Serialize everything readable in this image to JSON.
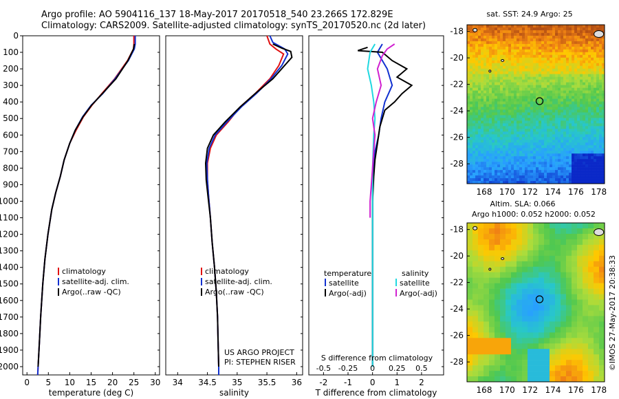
{
  "header": {
    "line1": "Argo profile: AO 5904116_137 18-May-2017 20170518_540 23.266S 172.829E",
    "line2": "Climatology: CARS2009. Satellite-adjusted climatology: synTS_20170520.nc (2d later)"
  },
  "colors": {
    "climatology": "#e01010",
    "satellite": "#1030d0",
    "argo": "#000000",
    "sat_s": "#20d8e0",
    "argo_s": "#d020d0"
  },
  "chart_data": [
    {
      "type": "line",
      "id": "temperature",
      "xlabel": "temperature (deg C)",
      "xlim": [
        -1,
        31
      ],
      "xticks": [
        0,
        5,
        10,
        15,
        20,
        25,
        30
      ],
      "ylim": [
        0,
        2050
      ],
      "yticks": [
        0,
        100,
        200,
        300,
        400,
        500,
        600,
        700,
        800,
        900,
        1000,
        1100,
        1200,
        1300,
        1400,
        1500,
        1600,
        1700,
        1800,
        1900,
        2000
      ],
      "legend": [
        "climatology",
        "satellite-adj. clim.",
        "Argo(..raw -QC)"
      ],
      "series": [
        {
          "name": "climatology",
          "color_key": "climatology",
          "points": [
            [
              25.0,
              0
            ],
            [
              25.0,
              50
            ],
            [
              24.9,
              80
            ],
            [
              23.5,
              150
            ],
            [
              20.5,
              260
            ],
            [
              17.5,
              350
            ],
            [
              15.2,
              420
            ],
            [
              13.2,
              490
            ],
            [
              11.5,
              570
            ],
            [
              10.0,
              650
            ],
            [
              8.7,
              750
            ],
            [
              7.8,
              850
            ],
            [
              6.7,
              950
            ],
            [
              5.8,
              1050
            ],
            [
              4.9,
              1200
            ],
            [
              4.2,
              1350
            ],
            [
              3.7,
              1500
            ],
            [
              3.2,
              1700
            ],
            [
              2.9,
              1850
            ],
            [
              2.6,
              2000
            ],
            [
              2.5,
              2050
            ]
          ]
        },
        {
          "name": "satellite-adj. clim.",
          "color_key": "satellite",
          "points": [
            [
              25.3,
              0
            ],
            [
              25.3,
              50
            ],
            [
              25.1,
              80
            ],
            [
              23.7,
              150
            ],
            [
              20.6,
              260
            ],
            [
              17.7,
              350
            ],
            [
              15.0,
              420
            ],
            [
              13.0,
              490
            ],
            [
              11.3,
              570
            ],
            [
              10.0,
              650
            ],
            [
              8.7,
              750
            ],
            [
              7.8,
              850
            ],
            [
              6.7,
              950
            ],
            [
              5.8,
              1050
            ],
            [
              4.9,
              1200
            ],
            [
              4.2,
              1350
            ],
            [
              3.7,
              1500
            ],
            [
              3.2,
              1700
            ],
            [
              2.9,
              1850
            ],
            [
              2.6,
              2000
            ],
            [
              2.5,
              2050
            ]
          ]
        },
        {
          "name": "Argo(..raw -QC)",
          "color_key": "argo",
          "points": [
            [
              25.1,
              50
            ],
            [
              24.9,
              80
            ],
            [
              23.6,
              150
            ],
            [
              20.8,
              260
            ],
            [
              17.6,
              350
            ],
            [
              15.1,
              420
            ],
            [
              13.1,
              490
            ],
            [
              11.3,
              570
            ],
            [
              10.0,
              650
            ],
            [
              8.7,
              750
            ],
            [
              7.8,
              850
            ],
            [
              6.7,
              950
            ],
            [
              5.8,
              1050
            ],
            [
              4.9,
              1200
            ],
            [
              4.2,
              1350
            ],
            [
              3.7,
              1500
            ],
            [
              3.2,
              1700
            ],
            [
              2.9,
              1850
            ],
            [
              2.6,
              2000
            ]
          ]
        }
      ]
    },
    {
      "type": "line",
      "id": "salinity",
      "xlabel": "salinity",
      "xlim": [
        33.8,
        36.1
      ],
      "xticks": [
        34,
        34.5,
        35,
        35.5,
        36
      ],
      "ylim": [
        0,
        2050
      ],
      "legend": [
        "climatology",
        "satellite-adj. clim.",
        "Argo(..raw -QC)"
      ],
      "annotation": [
        "US ARGO PROJECT",
        "PI: STEPHEN RISER"
      ],
      "series": [
        {
          "name": "climatology",
          "color_key": "climatology",
          "points": [
            [
              35.5,
              0
            ],
            [
              35.55,
              50
            ],
            [
              35.65,
              80
            ],
            [
              35.78,
              110
            ],
            [
              35.7,
              180
            ],
            [
              35.55,
              260
            ],
            [
              35.3,
              350
            ],
            [
              35.05,
              430
            ],
            [
              34.85,
              520
            ],
            [
              34.65,
              600
            ],
            [
              34.55,
              680
            ],
            [
              34.5,
              770
            ],
            [
              34.5,
              870
            ],
            [
              34.52,
              970
            ],
            [
              34.55,
              1100
            ],
            [
              34.58,
              1250
            ],
            [
              34.62,
              1400
            ],
            [
              34.65,
              1550
            ],
            [
              34.67,
              1700
            ],
            [
              34.68,
              1850
            ],
            [
              34.69,
              2000
            ],
            [
              34.69,
              2050
            ]
          ]
        },
        {
          "name": "satellite-adj. clim.",
          "color_key": "satellite",
          "points": [
            [
              35.55,
              0
            ],
            [
              35.6,
              40
            ],
            [
              35.8,
              80
            ],
            [
              35.85,
              110
            ],
            [
              35.75,
              180
            ],
            [
              35.57,
              260
            ],
            [
              35.32,
              350
            ],
            [
              35.07,
              430
            ],
            [
              34.83,
              520
            ],
            [
              34.63,
              600
            ],
            [
              34.53,
              680
            ],
            [
              34.49,
              770
            ],
            [
              34.5,
              870
            ],
            [
              34.52,
              970
            ],
            [
              34.55,
              1100
            ],
            [
              34.58,
              1250
            ],
            [
              34.62,
              1400
            ],
            [
              34.65,
              1550
            ],
            [
              34.67,
              1700
            ],
            [
              34.68,
              1850
            ],
            [
              34.69,
              2000
            ],
            [
              34.69,
              2050
            ]
          ]
        },
        {
          "name": "Argo(..raw -QC)",
          "color_key": "argo",
          "points": [
            [
              35.6,
              50
            ],
            [
              35.75,
              75
            ],
            [
              35.9,
              95
            ],
            [
              35.92,
              130
            ],
            [
              35.82,
              170
            ],
            [
              35.6,
              260
            ],
            [
              35.3,
              350
            ],
            [
              35.05,
              430
            ],
            [
              34.8,
              520
            ],
            [
              34.6,
              600
            ],
            [
              34.5,
              680
            ],
            [
              34.47,
              770
            ],
            [
              34.48,
              870
            ],
            [
              34.51,
              970
            ],
            [
              34.55,
              1100
            ],
            [
              34.58,
              1250
            ],
            [
              34.62,
              1400
            ],
            [
              34.65,
              1550
            ],
            [
              34.67,
              1700
            ],
            [
              34.68,
              1850
            ],
            [
              34.69,
              2000
            ]
          ]
        }
      ]
    },
    {
      "type": "line",
      "id": "difference",
      "xlabel": "T difference from climatology",
      "xlabel_top": "S difference from climatology",
      "xlim": [
        -2.6,
        2.9
      ],
      "xticks": [
        -2,
        -1,
        0,
        1,
        2
      ],
      "s_ticks": [
        "-0.5",
        "-0.25",
        "0",
        "0.25",
        "0.5"
      ],
      "ylim": [
        0,
        2050
      ],
      "legend_t_title": "temperature",
      "legend_s_title": "salinity",
      "legend_t": [
        "satellite",
        "Argo(-adj)"
      ],
      "legend_s": [
        "satellite",
        "Argo(-adj)"
      ],
      "series": [
        {
          "name": "T satellite",
          "color_key": "satellite",
          "points": [
            [
              0.4,
              50
            ],
            [
              0.2,
              100
            ],
            [
              0.6,
              200
            ],
            [
              0.8,
              300
            ],
            [
              0.5,
              400
            ],
            [
              0.35,
              500
            ],
            [
              0.25,
              600
            ],
            [
              0.1,
              700
            ],
            [
              0.05,
              800
            ],
            [
              0.0,
              900
            ],
            [
              0.0,
              1000
            ],
            [
              0.0,
              1200
            ],
            [
              0.0,
              1500
            ],
            [
              0.0,
              1800
            ],
            [
              0.0,
              2000
            ]
          ]
        },
        {
          "name": "T Argo(-adj)",
          "color_key": "argo",
          "points": [
            [
              -0.2,
              70
            ],
            [
              -0.6,
              90
            ],
            [
              0.4,
              100
            ],
            [
              0.8,
              150
            ],
            [
              1.4,
              200
            ],
            [
              1.0,
              250
            ],
            [
              1.6,
              300
            ],
            [
              1.2,
              350
            ],
            [
              0.9,
              400
            ],
            [
              0.5,
              450
            ],
            [
              0.3,
              550
            ],
            [
              0.2,
              650
            ],
            [
              0.1,
              750
            ],
            [
              0.05,
              850
            ],
            [
              0.0,
              1000
            ],
            [
              0.0,
              1500
            ],
            [
              0.0,
              2000
            ]
          ]
        },
        {
          "name": "S satellite",
          "color_key": "sat_s",
          "points": [
            [
              0.1,
              50
            ],
            [
              -0.1,
              100
            ],
            [
              -0.2,
              200
            ],
            [
              -0.05,
              300
            ],
            [
              0.05,
              400
            ],
            [
              0.1,
              500
            ],
            [
              0.05,
              600
            ],
            [
              0.0,
              800
            ],
            [
              0.0,
              1000
            ],
            [
              0.0,
              1300
            ],
            [
              0.0,
              1600
            ],
            [
              0.0,
              2000
            ]
          ]
        },
        {
          "name": "S Argo(-adj)",
          "color_key": "argo_s",
          "points": [
            [
              0.9,
              50
            ],
            [
              0.6,
              80
            ],
            [
              0.4,
              120
            ],
            [
              0.2,
              200
            ],
            [
              0.35,
              300
            ],
            [
              0.15,
              400
            ],
            [
              0.0,
              500
            ],
            [
              0.1,
              600
            ],
            [
              0.05,
              700
            ],
            [
              0.0,
              800
            ],
            [
              -0.05,
              900
            ],
            [
              -0.1,
              1000
            ],
            [
              -0.1,
              1100
            ]
          ]
        }
      ]
    },
    {
      "type": "heatmap",
      "id": "sst_map",
      "title": "sat. SST: 24.9 Argo: 25",
      "xticks": [
        168,
        170,
        172,
        174,
        176,
        178
      ],
      "yticks": [
        -18,
        -20,
        -22,
        -24,
        -26,
        -28
      ],
      "xlim": [
        166.5,
        178.5
      ],
      "ylim": [
        -29.5,
        -17.5
      ],
      "argo_position": [
        172.829,
        -23.266
      ]
    },
    {
      "type": "heatmap",
      "id": "sla_map",
      "title": "Altim. SLA: 0.066",
      "subtitle": "Argo h1000: 0.052 h2000: 0.052",
      "xticks": [
        168,
        170,
        172,
        174,
        176,
        178
      ],
      "yticks": [
        -18,
        -20,
        -22,
        -24,
        -26,
        -28
      ],
      "xlim": [
        166.5,
        178.5
      ],
      "ylim": [
        -29.5,
        -17.5
      ],
      "argo_position": [
        172.829,
        -23.266
      ]
    }
  ],
  "credit": "©IMOS 27-May-2017 20:38:33"
}
